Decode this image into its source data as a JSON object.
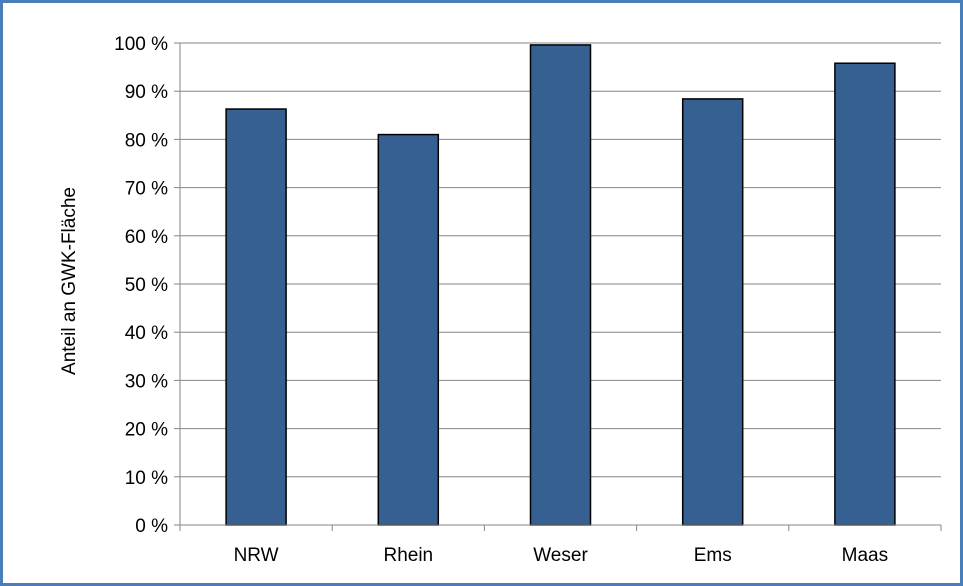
{
  "chart_data": {
    "type": "bar",
    "title": "",
    "xlabel": "",
    "ylabel": "Anteil an GWK-Fläche",
    "categories": [
      "NRW",
      "Rhein",
      "Weser",
      "Ems",
      "Maas"
    ],
    "values": [
      86.3,
      81.0,
      99.6,
      88.4,
      95.8
    ],
    "ylim": [
      0,
      100
    ],
    "yticks": [
      0,
      10,
      20,
      30,
      40,
      50,
      60,
      70,
      80,
      90,
      100
    ],
    "ytick_labels": [
      "0 %",
      "10 %",
      "20 %",
      "30 %",
      "40 %",
      "50 %",
      "60 %",
      "70 %",
      "80 %",
      "90 %",
      "100 %"
    ],
    "grid": true,
    "legend": "none",
    "colors": {
      "bar_fill": "#366092",
      "bar_stroke": "#000000",
      "grid": "#868686",
      "frame": "#4a7ebb"
    }
  }
}
